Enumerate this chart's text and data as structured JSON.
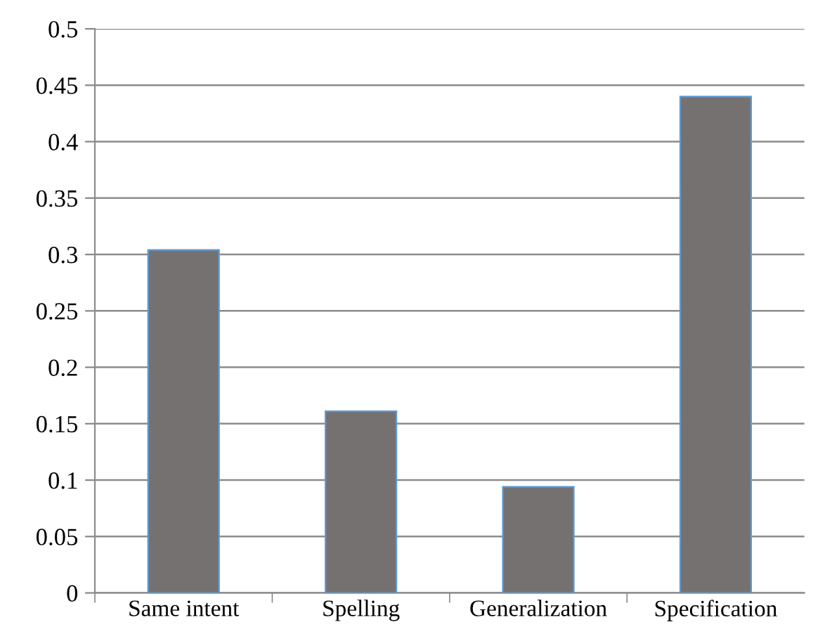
{
  "chart_data": {
    "type": "bar",
    "categories": [
      "Same intent",
      "Spelling",
      "Generalization",
      "Specification"
    ],
    "values": [
      0.304,
      0.161,
      0.094,
      0.44
    ],
    "color": "#767171",
    "ylim": [
      0,
      0.5
    ],
    "yticks": [
      0,
      0.05,
      0.1,
      0.15,
      0.2,
      0.25,
      0.3,
      0.35,
      0.4,
      0.45,
      0.5
    ],
    "grid": "y"
  }
}
